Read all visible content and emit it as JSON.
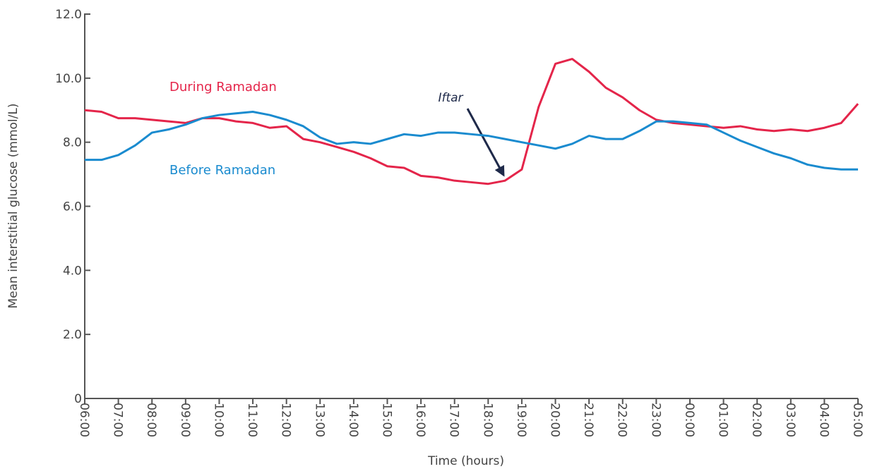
{
  "chart_data": {
    "type": "line",
    "xlabel": "Time (hours)",
    "ylabel": "Mean interstitial glucose (mmol/L)",
    "categories": [
      "06:00",
      null,
      "07:00",
      null,
      "08:00",
      null,
      "09:00",
      null,
      "10:00",
      null,
      "11:00",
      null,
      "12:00",
      null,
      "13:00",
      null,
      "14:00",
      null,
      "15:00",
      null,
      "16:00",
      null,
      "17:00",
      null,
      "18:00",
      null,
      "19:00",
      null,
      "20:00",
      null,
      "21:00",
      null,
      "22:00",
      null,
      "23:00",
      null,
      "00:00",
      null,
      "01:00",
      null,
      "02:00",
      null,
      "03:00",
      null,
      "04:00",
      null,
      "05:00"
    ],
    "series": [
      {
        "name": "During Ramadan",
        "color": "#e4254a",
        "values": [
          9.0,
          8.95,
          8.75,
          8.75,
          8.7,
          8.65,
          8.6,
          8.75,
          8.75,
          8.65,
          8.6,
          8.45,
          8.5,
          8.1,
          8.0,
          7.85,
          7.7,
          7.5,
          7.25,
          7.2,
          6.95,
          6.9,
          6.8,
          6.75,
          6.7,
          6.8,
          7.15,
          9.1,
          10.45,
          10.6,
          10.2,
          9.7,
          9.4,
          9.0,
          8.7,
          8.6,
          8.55,
          8.5,
          8.45,
          8.5,
          8.4,
          8.35,
          8.4,
          8.35,
          8.45,
          8.6,
          9.2
        ]
      },
      {
        "name": "Before Ramadan",
        "color": "#1a8bcf",
        "values": [
          7.45,
          7.45,
          7.6,
          7.9,
          8.3,
          8.4,
          8.55,
          8.75,
          8.85,
          8.9,
          8.95,
          8.85,
          8.7,
          8.5,
          8.15,
          7.95,
          8.0,
          7.95,
          8.1,
          8.25,
          8.2,
          8.3,
          8.3,
          8.25,
          8.2,
          8.1,
          8.0,
          7.9,
          7.8,
          7.95,
          8.2,
          8.1,
          8.1,
          8.35,
          8.65,
          8.65,
          8.6,
          8.55,
          8.3,
          8.05,
          7.85,
          7.65,
          7.5,
          7.3,
          7.2,
          7.15,
          7.15
        ]
      }
    ],
    "annotations": [
      "Iftar"
    ],
    "ylim": [
      0,
      12
    ],
    "yticks": [
      0,
      {
        "value": 2,
        "label": "2.0"
      },
      {
        "value": 4,
        "label": "4.0"
      },
      {
        "value": 6,
        "label": "6.0"
      },
      {
        "value": 8,
        "label": "8.0"
      },
      {
        "value": 10,
        "label": "10.0"
      },
      {
        "value": 12,
        "label": "12.0"
      }
    ]
  }
}
